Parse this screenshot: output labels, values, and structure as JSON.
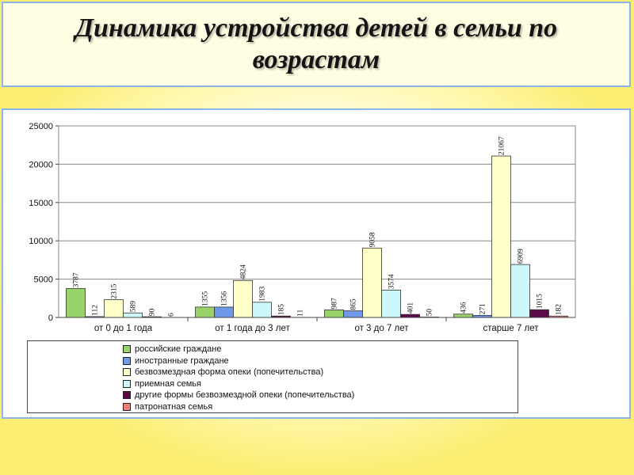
{
  "title": "Динамика устройства детей в семьи по возрастам",
  "chart_data": {
    "type": "bar",
    "title": "",
    "xlabel": "",
    "ylabel": "",
    "ylim": [
      0,
      25000
    ],
    "yticks": [
      0,
      5000,
      10000,
      15000,
      20000,
      25000
    ],
    "grid": true,
    "legend_position": "bottom",
    "categories": [
      "от 0 до 1 года",
      "от 1 года до 3 лет",
      "от 3 до 7 лет",
      "старше 7 лет"
    ],
    "series": [
      {
        "name": "российские граждане",
        "color": "#9bd36b",
        "values": [
          3787,
          1355,
          987,
          436
        ]
      },
      {
        "name": "иностранные граждане",
        "color": "#6f97ea",
        "values": [
          112,
          1356,
          865,
          271
        ]
      },
      {
        "name": "безвозмездная форма опеки (попечительства)",
        "color": "#ffffc8",
        "values": [
          2315,
          4824,
          9058,
          21067
        ]
      },
      {
        "name": "приемная семья",
        "color": "#ccf7fb",
        "values": [
          589,
          1983,
          3574,
          6909
        ]
      },
      {
        "name": "другие формы безвозмездной опеки (попечительства)",
        "color": "#5c0a4c",
        "values": [
          90,
          185,
          401,
          1015
        ]
      },
      {
        "name": "патронатная семья",
        "color": "#ef8276",
        "values": [
          6,
          11,
          50,
          182
        ]
      }
    ]
  }
}
